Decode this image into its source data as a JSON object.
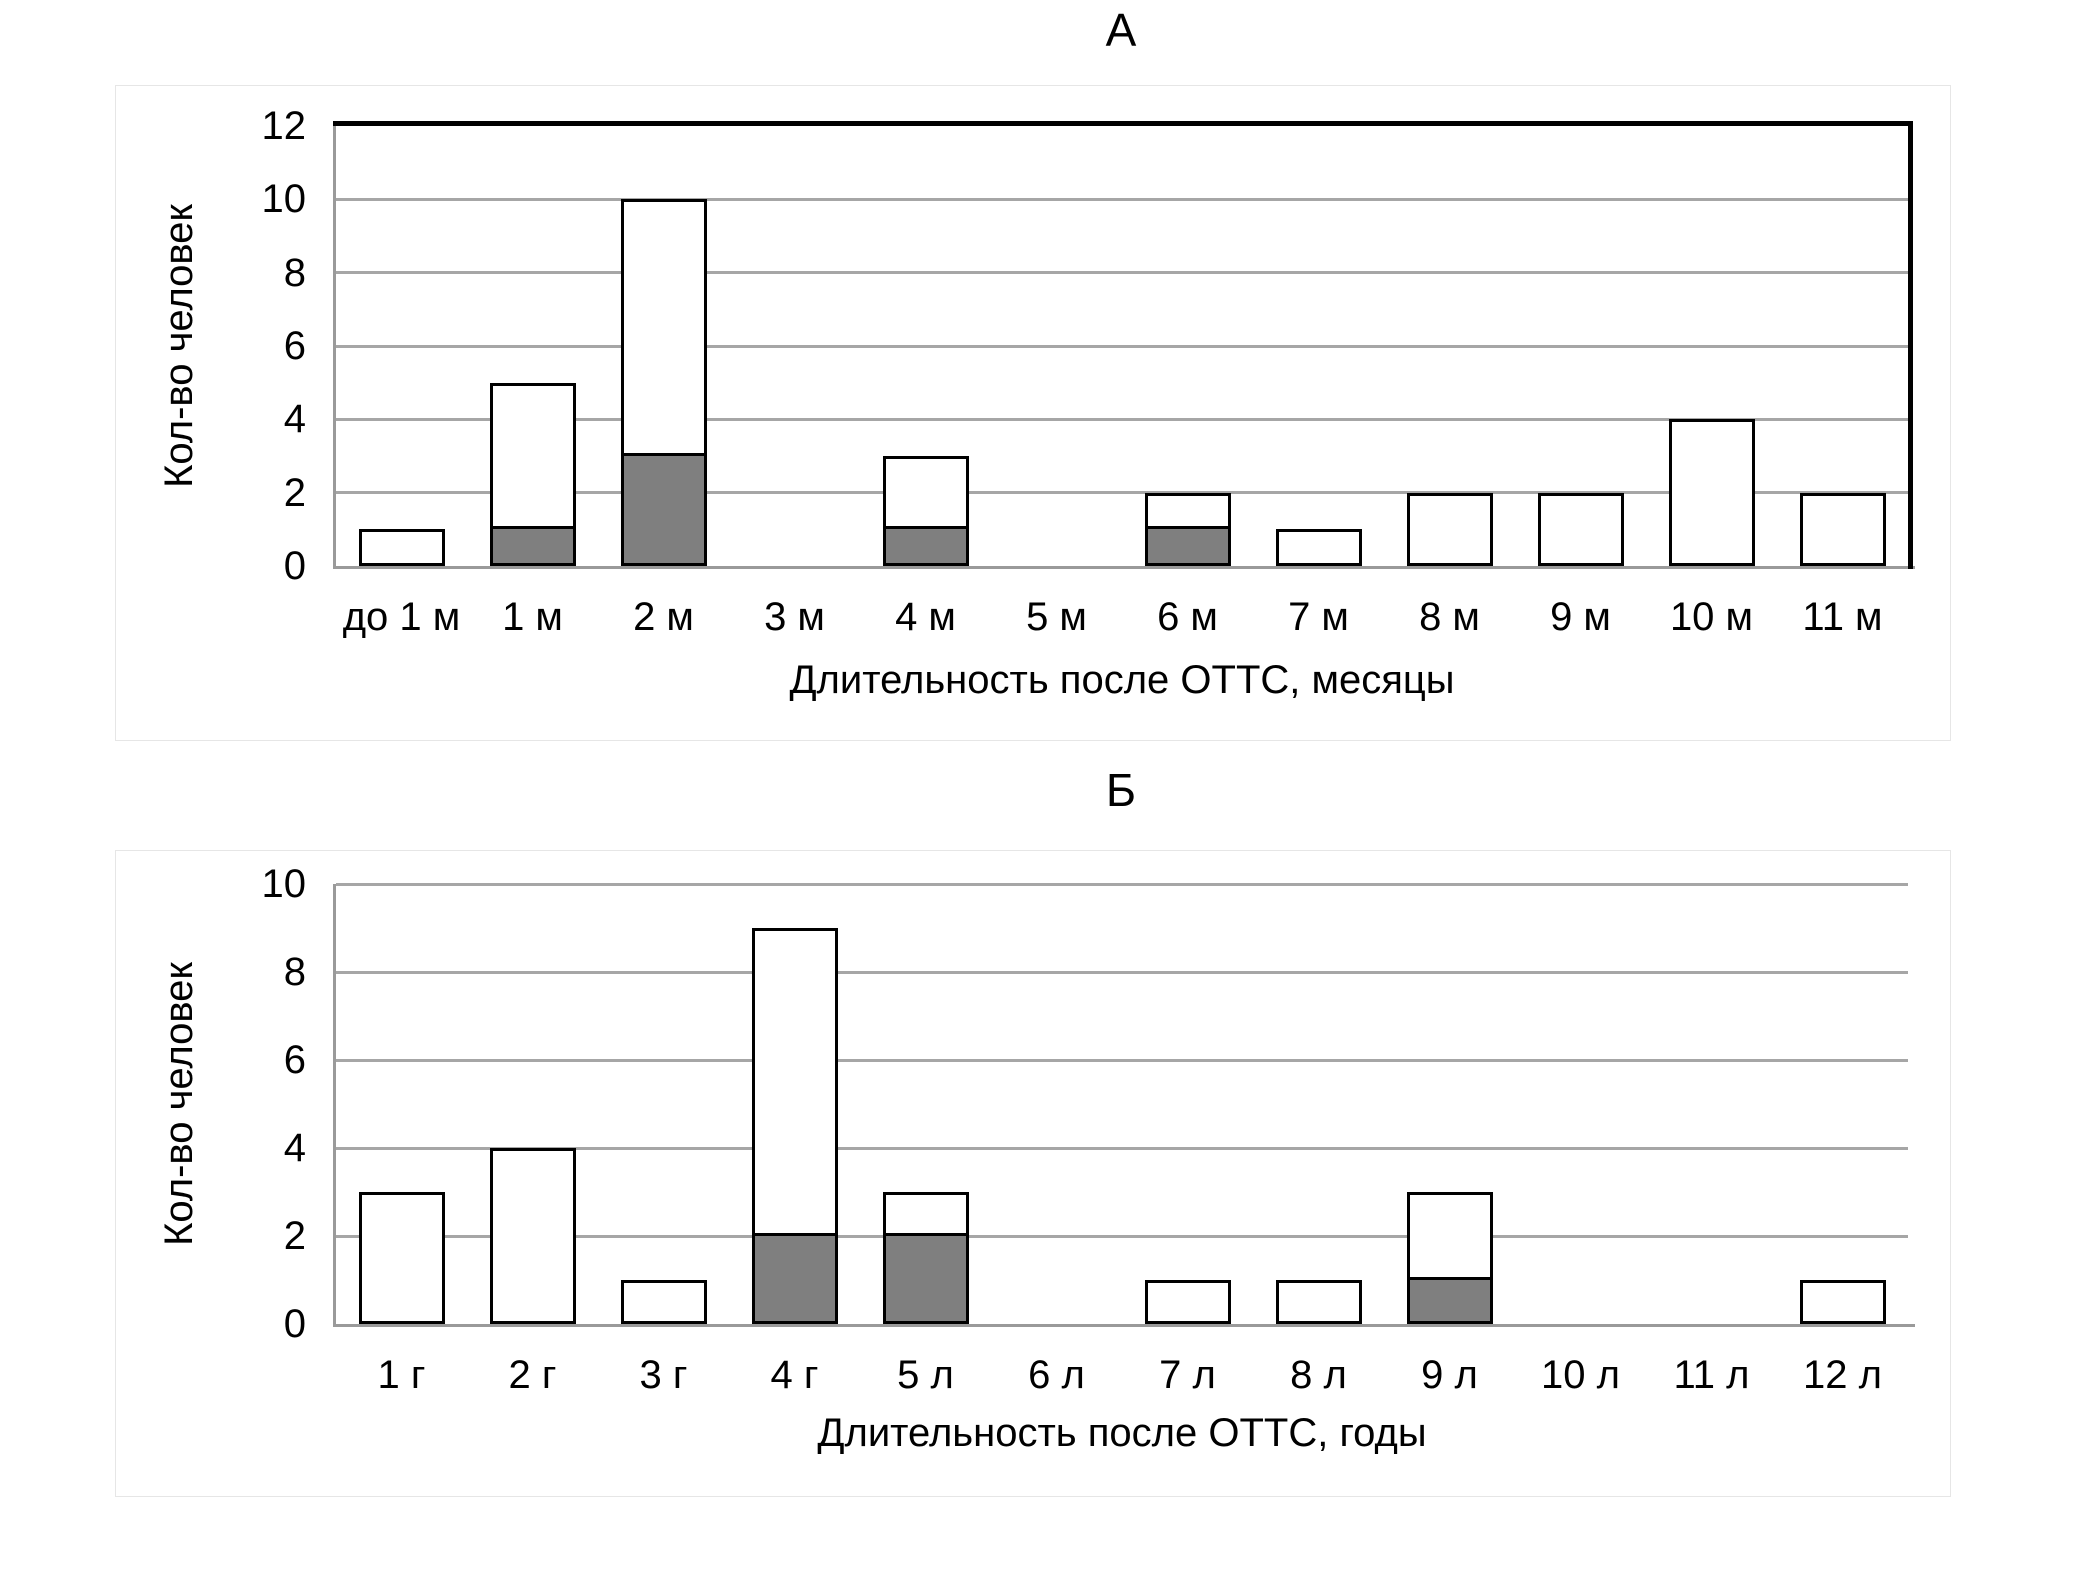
{
  "colors": {
    "background": "#ffffff",
    "card_border": "#e6e6e6",
    "gridline": "#a6a6a6",
    "axis_line": "#9a9a9a",
    "frame": "#000000",
    "bar_outline": "#000000",
    "bar_fill_gray": "#7f7f7f",
    "bar_fill_white": "#ffffff",
    "text": "#000000"
  },
  "chart_data": [
    {
      "type": "bar",
      "stacked": true,
      "panel_label": "А",
      "ylabel": "Кол-во человек",
      "xlabel": "Длительность после ОТТС, месяцы",
      "ylim": [
        0,
        12
      ],
      "yticks": [
        0,
        2,
        4,
        6,
        8,
        10,
        12
      ],
      "grid": "horizontal",
      "legend": "none",
      "frame_top_right": true,
      "categories": [
        "до 1 м",
        "1 м",
        "2 м",
        "3 м",
        "4 м",
        "5 м",
        "6 м",
        "7 м",
        "8 м",
        "9 м",
        "10 м",
        "11 м"
      ],
      "series": [
        {
          "name": "series-bottom-gray",
          "fill": "#7f7f7f",
          "values": [
            0,
            1,
            3,
            0,
            1,
            0,
            1,
            0,
            0,
            0,
            0,
            0
          ]
        },
        {
          "name": "series-top-white",
          "fill": "#ffffff",
          "values": [
            1,
            4,
            7,
            0,
            2,
            0,
            1,
            1,
            2,
            2,
            4,
            2
          ]
        }
      ],
      "totals": [
        1,
        5,
        10,
        0,
        3,
        0,
        2,
        1,
        2,
        2,
        4,
        2
      ]
    },
    {
      "type": "bar",
      "stacked": true,
      "panel_label": "Б",
      "ylabel": "Кол-во человек",
      "xlabel": "Длительность после ОТТС, годы",
      "ylim": [
        0,
        10
      ],
      "yticks": [
        0,
        2,
        4,
        6,
        8,
        10
      ],
      "grid": "horizontal",
      "legend": "none",
      "frame_top_right": false,
      "categories": [
        "1 г",
        "2 г",
        "3 г",
        "4 г",
        "5 л",
        "6 л",
        "7 л",
        "8 л",
        "9 л",
        "10 л",
        "11 л",
        "12 л"
      ],
      "series": [
        {
          "name": "series-bottom-gray",
          "fill": "#7f7f7f",
          "values": [
            0,
            0,
            0,
            2,
            2,
            0,
            0,
            0,
            1,
            0,
            0,
            0
          ]
        },
        {
          "name": "series-top-white",
          "fill": "#ffffff",
          "values": [
            3,
            4,
            1,
            7,
            1,
            0,
            1,
            1,
            2,
            0,
            0,
            1
          ]
        }
      ],
      "totals": [
        3,
        4,
        1,
        9,
        3,
        0,
        1,
        1,
        3,
        0,
        0,
        1
      ]
    }
  ]
}
